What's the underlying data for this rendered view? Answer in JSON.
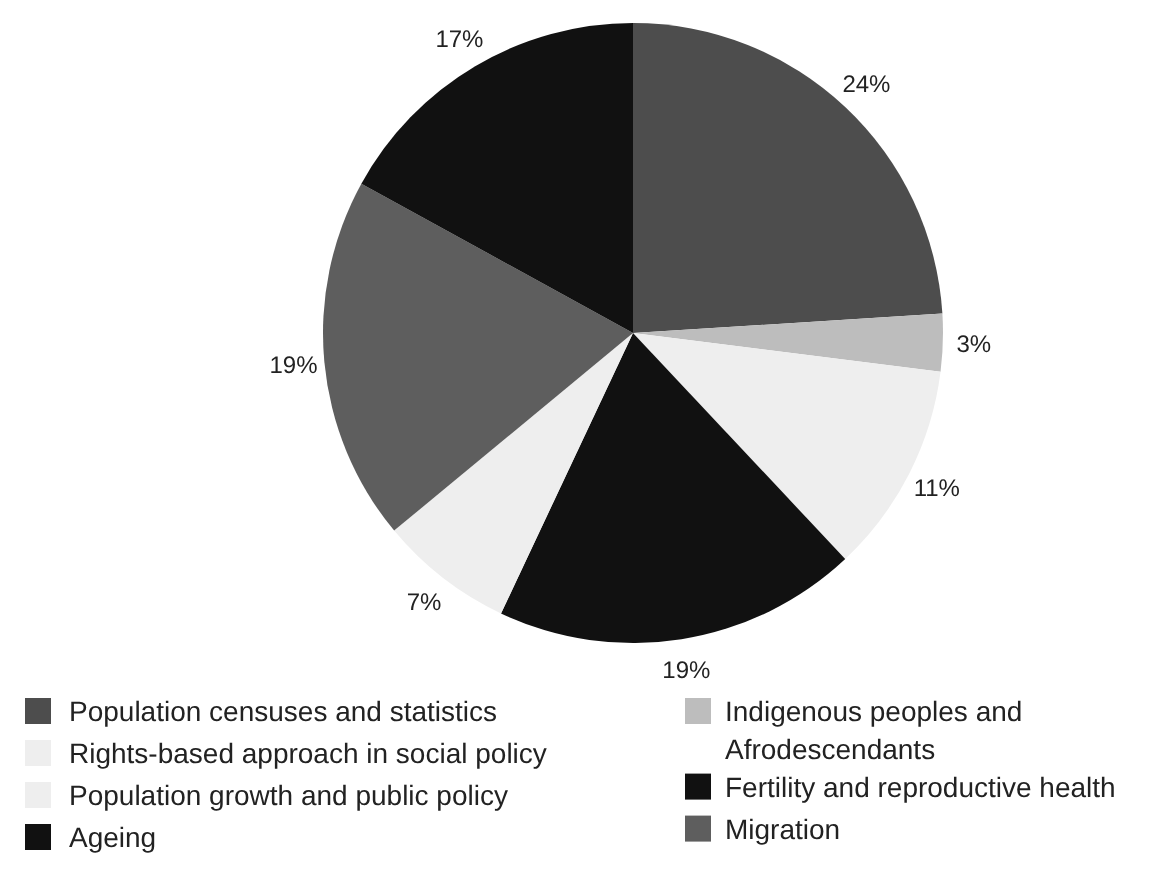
{
  "chart_data": {
    "type": "pie",
    "categories": [
      "Population censuses and statistics",
      "Indigenous peoples and Afrodescendants",
      "Rights-based approach in social policy",
      "Fertility and reproductive health",
      "Population growth and public policy",
      "Migration",
      "Ageing"
    ],
    "values": [
      24,
      3,
      11,
      19,
      7,
      19,
      17
    ],
    "colors": [
      "#4d4d4d",
      "#bdbdbd",
      "#eeeeee",
      "#111111",
      "#eeeeee",
      "#5e5e5e",
      "#111111"
    ],
    "value_labels": [
      "24%",
      "3%",
      "11%",
      "19%",
      "7%",
      "19%",
      "17%"
    ],
    "legend": "bottom"
  }
}
